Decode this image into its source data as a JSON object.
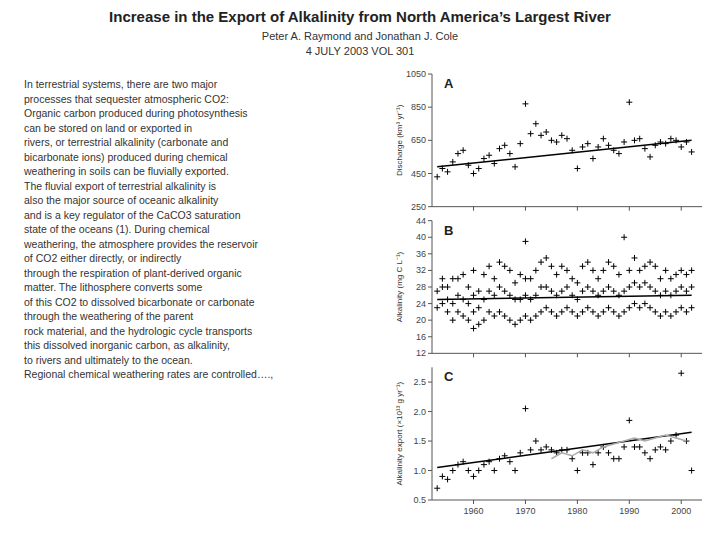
{
  "title": "Increase in the Export of Alkalinity from North America’s Largest River",
  "subtitle": [
    "Peter A. Raymond and Jonathan J. Cole",
    "4 JULY 2003 VOL 301"
  ],
  "body_text": "In terrestrial systems, there are two major\nprocesses that sequester atmospheric CO2:\nOrganic carbon produced during photosynthesis\ncan be stored on land or exported in\nrivers, or terrestrial alkalinity (carbonate and\nbicarbonate ions) produced during chemical\nweathering in soils can be fluvially exported.\nThe fluvial export of terrestrial alkalinity is\nalso the major source of oceanic alkalinity\nand is a key regulator of the CaCO3 saturation\nstate of the oceans (1). During chemical\nweathering, the atmosphere provides the reservoir\nof CO2 either directly, or indirectly\nthrough the respiration of plant-derived organic\nmatter. The lithosphere converts some\nof this CO2 to dissolved bicarbonate or carbonate\nthrough the weathering of the parent\nrock material, and the hydrologic cycle transports\nthis dissolved inorganic carbon, as alkalinity,\nto rivers and ultimately to the ocean.\nRegional chemical weathering rates are controlled….,",
  "chart_data": [
    {
      "type": "scatter",
      "annotations": [
        "A"
      ],
      "ylabel": "Discharge (km³ yr⁻¹)",
      "xlim": [
        1952,
        2004
      ],
      "xticks": [
        1960,
        1970,
        1980,
        1990,
        2000
      ],
      "ylim": [
        250,
        1050
      ],
      "yticks": [
        250,
        450,
        650,
        850,
        1050
      ],
      "tick_labels": "y",
      "grid": false,
      "series": [
        {
          "type": "scatter",
          "marker": "plus",
          "color": "#000000",
          "x": [
            1953,
            1954,
            1955,
            1956,
            1957,
            1958,
            1959,
            1960,
            1961,
            1962,
            1963,
            1964,
            1965,
            1966,
            1967,
            1968,
            1969,
            1970,
            1971,
            1972,
            1973,
            1974,
            1975,
            1976,
            1977,
            1978,
            1979,
            1980,
            1981,
            1982,
            1983,
            1984,
            1985,
            1986,
            1987,
            1988,
            1989,
            1990,
            1991,
            1992,
            1993,
            1994,
            1995,
            1996,
            1997,
            1998,
            1999,
            2000,
            2001,
            2002
          ],
          "values": [
            430,
            480,
            460,
            520,
            570,
            590,
            500,
            450,
            480,
            540,
            560,
            510,
            600,
            620,
            570,
            490,
            630,
            870,
            690,
            750,
            680,
            700,
            650,
            640,
            680,
            660,
            590,
            480,
            610,
            630,
            540,
            610,
            660,
            620,
            590,
            570,
            640,
            880,
            650,
            660,
            600,
            550,
            620,
            640,
            630,
            660,
            650,
            610,
            640,
            580
          ]
        },
        {
          "type": "line",
          "line_style": "solid",
          "color": "#000000",
          "x": [
            1953,
            2002
          ],
          "values": [
            490,
            650
          ]
        }
      ]
    },
    {
      "type": "scatter",
      "annotations": [
        "B"
      ],
      "ylabel": "Alkalinity (mg C L⁻¹)",
      "xlim": [
        1952,
        2004
      ],
      "xticks": [
        1960,
        1970,
        1980,
        1990,
        2000
      ],
      "ylim": [
        12,
        44
      ],
      "yticks": [
        12,
        16,
        20,
        24,
        28,
        32,
        36,
        40,
        44
      ],
      "tick_labels": "y",
      "grid": false,
      "series": [
        {
          "type": "scatter",
          "marker": "plus",
          "color": "#000000",
          "x": [
            1953,
            1953,
            1954,
            1954,
            1954,
            1955,
            1955,
            1955,
            1956,
            1956,
            1956,
            1957,
            1957,
            1957,
            1958,
            1958,
            1958,
            1959,
            1959,
            1959,
            1960,
            1960,
            1960,
            1960,
            1961,
            1961,
            1961,
            1962,
            1962,
            1962,
            1963,
            1963,
            1963,
            1964,
            1964,
            1964,
            1965,
            1965,
            1965,
            1966,
            1966,
            1966,
            1967,
            1967,
            1967,
            1968,
            1968,
            1968,
            1969,
            1969,
            1969,
            1970,
            1970,
            1970,
            1970,
            1971,
            1971,
            1971,
            1972,
            1972,
            1972,
            1973,
            1973,
            1973,
            1974,
            1974,
            1974,
            1975,
            1975,
            1975,
            1976,
            1976,
            1976,
            1977,
            1977,
            1977,
            1978,
            1978,
            1978,
            1979,
            1979,
            1979,
            1980,
            1980,
            1980,
            1981,
            1981,
            1981,
            1982,
            1982,
            1982,
            1983,
            1983,
            1983,
            1984,
            1984,
            1984,
            1985,
            1985,
            1985,
            1986,
            1986,
            1986,
            1987,
            1987,
            1987,
            1988,
            1988,
            1988,
            1989,
            1989,
            1989,
            1990,
            1990,
            1990,
            1991,
            1991,
            1991,
            1992,
            1992,
            1992,
            1993,
            1993,
            1993,
            1994,
            1994,
            1994,
            1995,
            1995,
            1995,
            1996,
            1996,
            1996,
            1997,
            1997,
            1997,
            1998,
            1998,
            1998,
            1999,
            1999,
            1999,
            2000,
            2000,
            2000,
            2001,
            2001,
            2001,
            2002,
            2002,
            2002
          ],
          "values": [
            23,
            27,
            24,
            28,
            30,
            22,
            25,
            28,
            20,
            24,
            30,
            22,
            26,
            30,
            21,
            25,
            31,
            20,
            24,
            28,
            18,
            22,
            26,
            32,
            19,
            23,
            27,
            20,
            25,
            31,
            22,
            27,
            33,
            21,
            26,
            30,
            22,
            28,
            34,
            21,
            27,
            33,
            20,
            26,
            32,
            19,
            25,
            29,
            20,
            25,
            31,
            21,
            26,
            30,
            39,
            20,
            25,
            30,
            21,
            26,
            32,
            22,
            28,
            34,
            23,
            28,
            35,
            22,
            27,
            33,
            21,
            26,
            31,
            22,
            27,
            33,
            23,
            28,
            32,
            22,
            26,
            30,
            21,
            25,
            29,
            22,
            27,
            33,
            23,
            28,
            34,
            22,
            27,
            32,
            21,
            26,
            30,
            22,
            27,
            32,
            23,
            28,
            34,
            22,
            27,
            33,
            21,
            26,
            31,
            22,
            27,
            40,
            23,
            28,
            32,
            24,
            29,
            35,
            23,
            28,
            32,
            24,
            29,
            33,
            23,
            28,
            34,
            22,
            27,
            33,
            21,
            26,
            30,
            22,
            27,
            32,
            21,
            26,
            30,
            22,
            27,
            31,
            23,
            28,
            32,
            22,
            27,
            31,
            23,
            28,
            32
          ]
        },
        {
          "type": "line",
          "line_style": "solid",
          "color": "#000000",
          "x": [
            1953,
            2002
          ],
          "values": [
            25,
            26
          ]
        }
      ]
    },
    {
      "type": "scatter",
      "annotations": [
        "C"
      ],
      "ylabel": "Alkalinity export (×10¹³ g yr⁻¹)",
      "xlim": [
        1952,
        2004
      ],
      "xticks": [
        1960,
        1970,
        1980,
        1990,
        2000
      ],
      "ylim": [
        0.5,
        2.75
      ],
      "yticks": [
        0.5,
        {
          "value": 1,
          "label": "1.0"
        },
        1.5,
        {
          "value": 2,
          "label": "2.0"
        },
        2.5
      ],
      "grid": false,
      "series": [
        {
          "type": "scatter",
          "marker": "plus",
          "color": "#000000",
          "x": [
            1953,
            1954,
            1955,
            1956,
            1957,
            1958,
            1959,
            1960,
            1961,
            1962,
            1963,
            1964,
            1965,
            1966,
            1967,
            1968,
            1969,
            1970,
            1971,
            1972,
            1973,
            1974,
            1975,
            1976,
            1977,
            1978,
            1979,
            1980,
            1981,
            1982,
            1983,
            1984,
            1985,
            1986,
            1987,
            1988,
            1989,
            1990,
            1991,
            1992,
            1993,
            1994,
            1995,
            1996,
            1997,
            1998,
            1999,
            2000,
            2001,
            2002
          ],
          "values": [
            0.7,
            0.9,
            0.85,
            1.0,
            1.1,
            1.15,
            1.0,
            0.9,
            1.0,
            1.1,
            1.15,
            1.0,
            1.2,
            1.25,
            1.15,
            1.0,
            1.3,
            2.05,
            1.35,
            1.5,
            1.35,
            1.4,
            1.35,
            1.3,
            1.35,
            1.35,
            1.2,
            1.0,
            1.3,
            1.3,
            1.1,
            1.3,
            1.4,
            1.3,
            1.2,
            1.2,
            1.4,
            1.85,
            1.4,
            1.4,
            1.3,
            1.2,
            1.35,
            1.4,
            1.35,
            1.5,
            1.6,
            2.65,
            1.5,
            1.0
          ]
        },
        {
          "type": "line",
          "line_style": "solid",
          "color": "#000000",
          "x": [
            1953,
            2002
          ],
          "values": [
            1.05,
            1.65
          ]
        },
        {
          "type": "line",
          "line_style": "solid",
          "color": "#aaaaaa",
          "x": [
            1975,
            1977,
            1979,
            1981,
            1983,
            1985,
            1987,
            1989,
            1991,
            1993,
            1995,
            1997,
            1999,
            2001
          ],
          "values": [
            1.2,
            1.3,
            1.25,
            1.35,
            1.3,
            1.4,
            1.45,
            1.5,
            1.55,
            1.5,
            1.55,
            1.6,
            1.55,
            1.5
          ]
        }
      ]
    }
  ]
}
